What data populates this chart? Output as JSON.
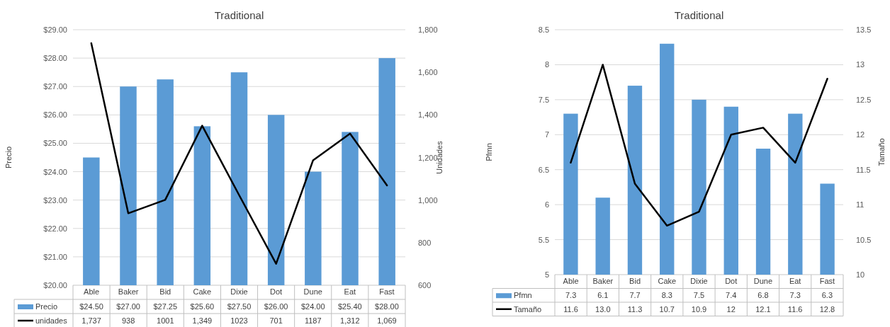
{
  "chart_data": [
    {
      "type": "bar",
      "title": "Traditional",
      "ylabel": "Precio",
      "y2label": "Unidades",
      "categories": [
        "Able",
        "Baker",
        "Bid",
        "Cake",
        "Dixie",
        "Dot",
        "Dune",
        "Eat",
        "Fast"
      ],
      "series": [
        {
          "name": "Precio",
          "color": "#5b9bd5",
          "values": [
            24.5,
            27,
            27.25,
            25.6,
            27.5,
            26,
            24,
            25.4,
            28
          ],
          "value_labels": [
            "$24.50",
            "$27.00",
            "$27.25",
            "$25.60",
            "$27.50",
            "$26.00",
            "$24.00",
            "$25.40",
            "$28.00"
          ]
        },
        {
          "name": "unidades",
          "type": "line",
          "axis": "y2",
          "color": "#000000",
          "values": [
            1737,
            938,
            1001,
            1349,
            1023,
            701,
            1187,
            1312,
            1069
          ],
          "value_labels": [
            "1,737",
            "938",
            "1001",
            "1,349",
            "1023",
            "701",
            "1187",
            "1,312",
            "1,069"
          ]
        }
      ],
      "ylim": [
        20,
        29
      ],
      "yticks": [
        {
          "value": 20,
          "label": "$20.00"
        },
        {
          "value": 21,
          "label": "$21.00"
        },
        {
          "value": 22,
          "label": "$22.00"
        },
        {
          "value": 23,
          "label": "$23.00"
        },
        {
          "value": 24,
          "label": "$24.00"
        },
        {
          "value": 25,
          "label": "$25.00"
        },
        {
          "value": 26,
          "label": "$26.00"
        },
        {
          "value": 27,
          "label": "$27.00"
        },
        {
          "value": 28,
          "label": "$28.00"
        },
        {
          "value": 29,
          "label": "$29.00"
        }
      ],
      "y2lim": [
        600,
        1800
      ],
      "y2ticks": [
        {
          "value": 600,
          "label": "600"
        },
        {
          "value": 800,
          "label": "800"
        },
        {
          "value": 1000,
          "label": "1,000"
        },
        {
          "value": 1200,
          "label": "1,200"
        },
        {
          "value": 1400,
          "label": "1,400"
        },
        {
          "value": 1600,
          "label": "1,600"
        },
        {
          "value": 1800,
          "label": "1,800"
        }
      ],
      "grid": "y",
      "legend": "bottom",
      "marker": "none",
      "line_style": "solid"
    },
    {
      "type": "bar",
      "title": "Traditional",
      "ylabel": "Pfmn",
      "y2label": "Tamaño",
      "categories": [
        "Able",
        "Baker",
        "Bid",
        "Cake",
        "Dixie",
        "Dot",
        "Dune",
        "Eat",
        "Fast"
      ],
      "series": [
        {
          "name": "Pfmn",
          "color": "#5b9bd5",
          "values": [
            7.3,
            6.1,
            7.7,
            8.3,
            7.5,
            7.4,
            6.8,
            7.3,
            6.3
          ],
          "value_labels": [
            "7.3",
            "6.1",
            "7.7",
            "8.3",
            "7.5",
            "7.4",
            "6.8",
            "7.3",
            "6.3"
          ]
        },
        {
          "name": "Tamaño",
          "type": "line",
          "axis": "y2",
          "color": "#000000",
          "values": [
            11.6,
            13.0,
            11.3,
            10.7,
            10.9,
            12,
            12.1,
            11.6,
            12.8
          ],
          "value_labels": [
            "11.6",
            "13.0",
            "11.3",
            "10.7",
            "10.9",
            "12",
            "12.1",
            "11.6",
            "12.8"
          ]
        }
      ],
      "ylim": [
        5,
        8.5
      ],
      "yticks": [
        5,
        5.5,
        6,
        6.5,
        7,
        7.5,
        8,
        8.5
      ],
      "y2lim": [
        10,
        13.5
      ],
      "y2ticks": [
        10,
        10.5,
        11,
        11.5,
        12,
        12.5,
        13,
        13.5
      ],
      "grid": "y",
      "legend": "bottom",
      "marker": "none",
      "line_style": "solid"
    }
  ]
}
